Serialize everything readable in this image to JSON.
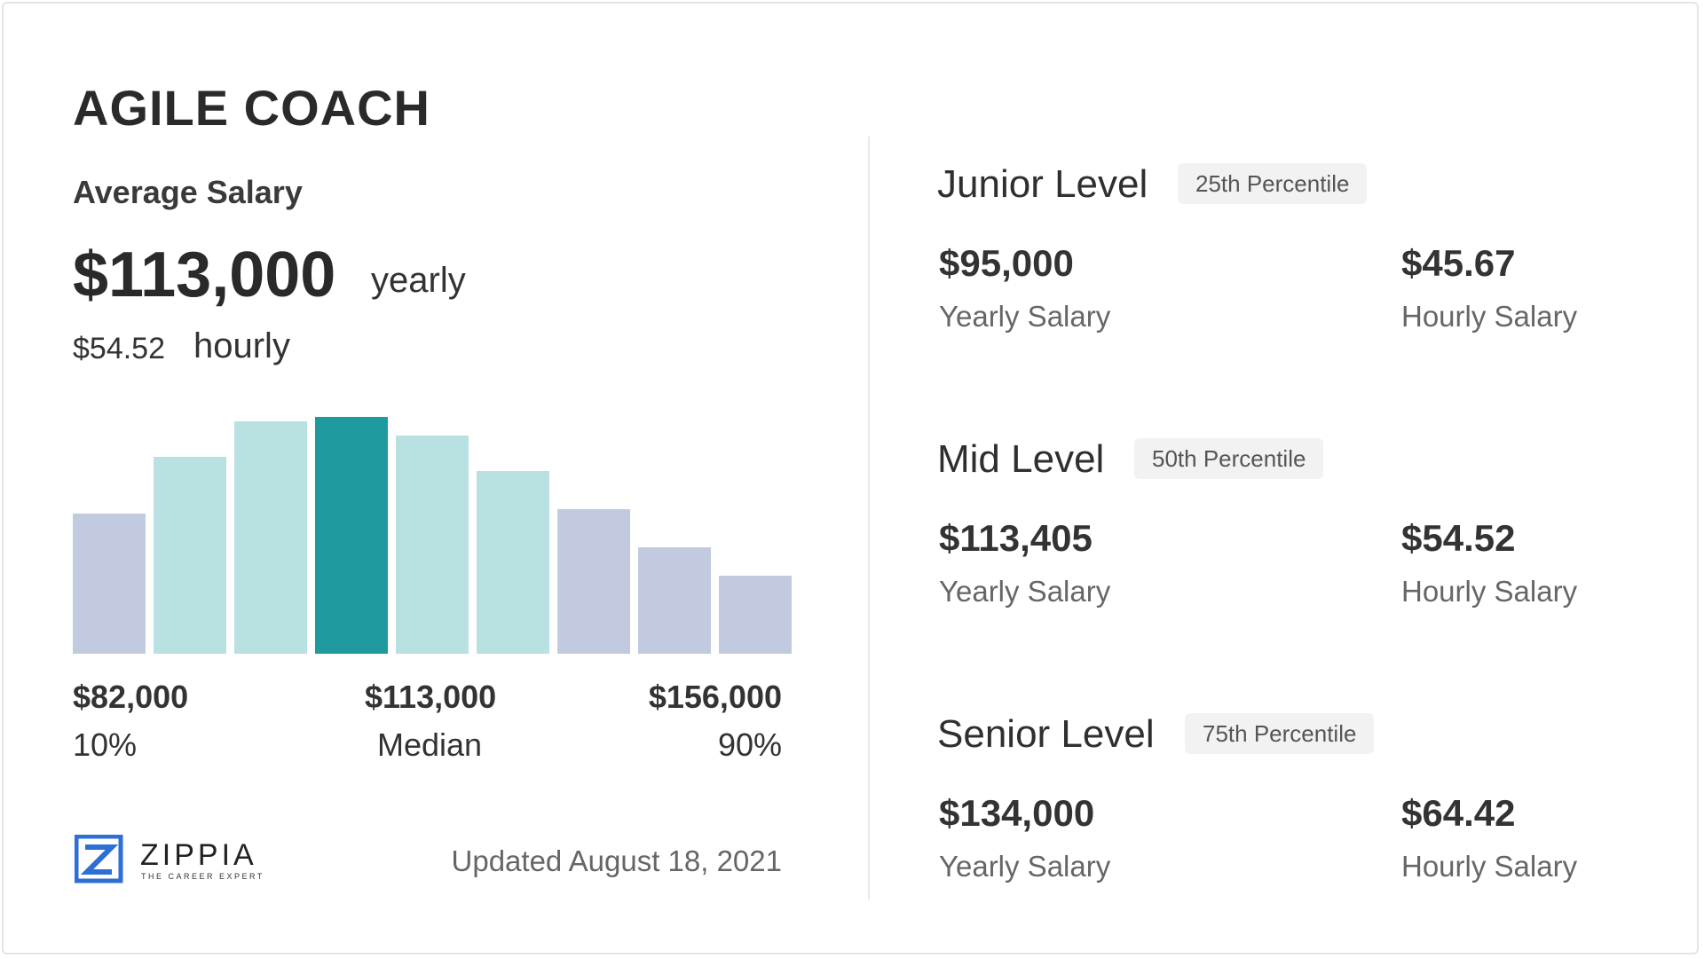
{
  "title": "AGILE COACH",
  "average": {
    "label": "Average Salary",
    "yearly": "$113,000",
    "yearly_unit": "yearly",
    "hourly": "$54.52",
    "hourly_unit": "hourly"
  },
  "chart_data": {
    "type": "bar",
    "values": [
      59,
      83,
      98,
      100,
      92,
      77,
      61,
      45,
      33
    ],
    "colors": [
      "#c2cadf",
      "#b9e1e1",
      "#b9e1e1",
      "#1f9a9f",
      "#b9e1e1",
      "#b9e1e1",
      "#c2cadf",
      "#c2cadf",
      "#c2cadf"
    ],
    "ylim": [
      0,
      100
    ]
  },
  "range": [
    {
      "amount": "$82,000",
      "label": "10%"
    },
    {
      "amount": "$113,000",
      "label": "Median"
    },
    {
      "amount": "$156,000",
      "label": "90%"
    }
  ],
  "logo": {
    "name": "ZIPPIA",
    "tagline": "THE CAREER EXPERT"
  },
  "updated": "Updated August 18, 2021",
  "levels": [
    {
      "name": "Junior Level",
      "percentile": "25th Percentile",
      "yearly": "$95,000",
      "yearly_label": "Yearly Salary",
      "hourly": "$45.67",
      "hourly_label": "Hourly Salary"
    },
    {
      "name": "Mid Level",
      "percentile": "50th Percentile",
      "yearly": "$113,405",
      "yearly_label": "Yearly Salary",
      "hourly": "$54.52",
      "hourly_label": "Hourly Salary"
    },
    {
      "name": "Senior Level",
      "percentile": "75th Percentile",
      "yearly": "$134,000",
      "yearly_label": "Yearly Salary",
      "hourly": "$64.42",
      "hourly_label": "Hourly Salary"
    }
  ]
}
